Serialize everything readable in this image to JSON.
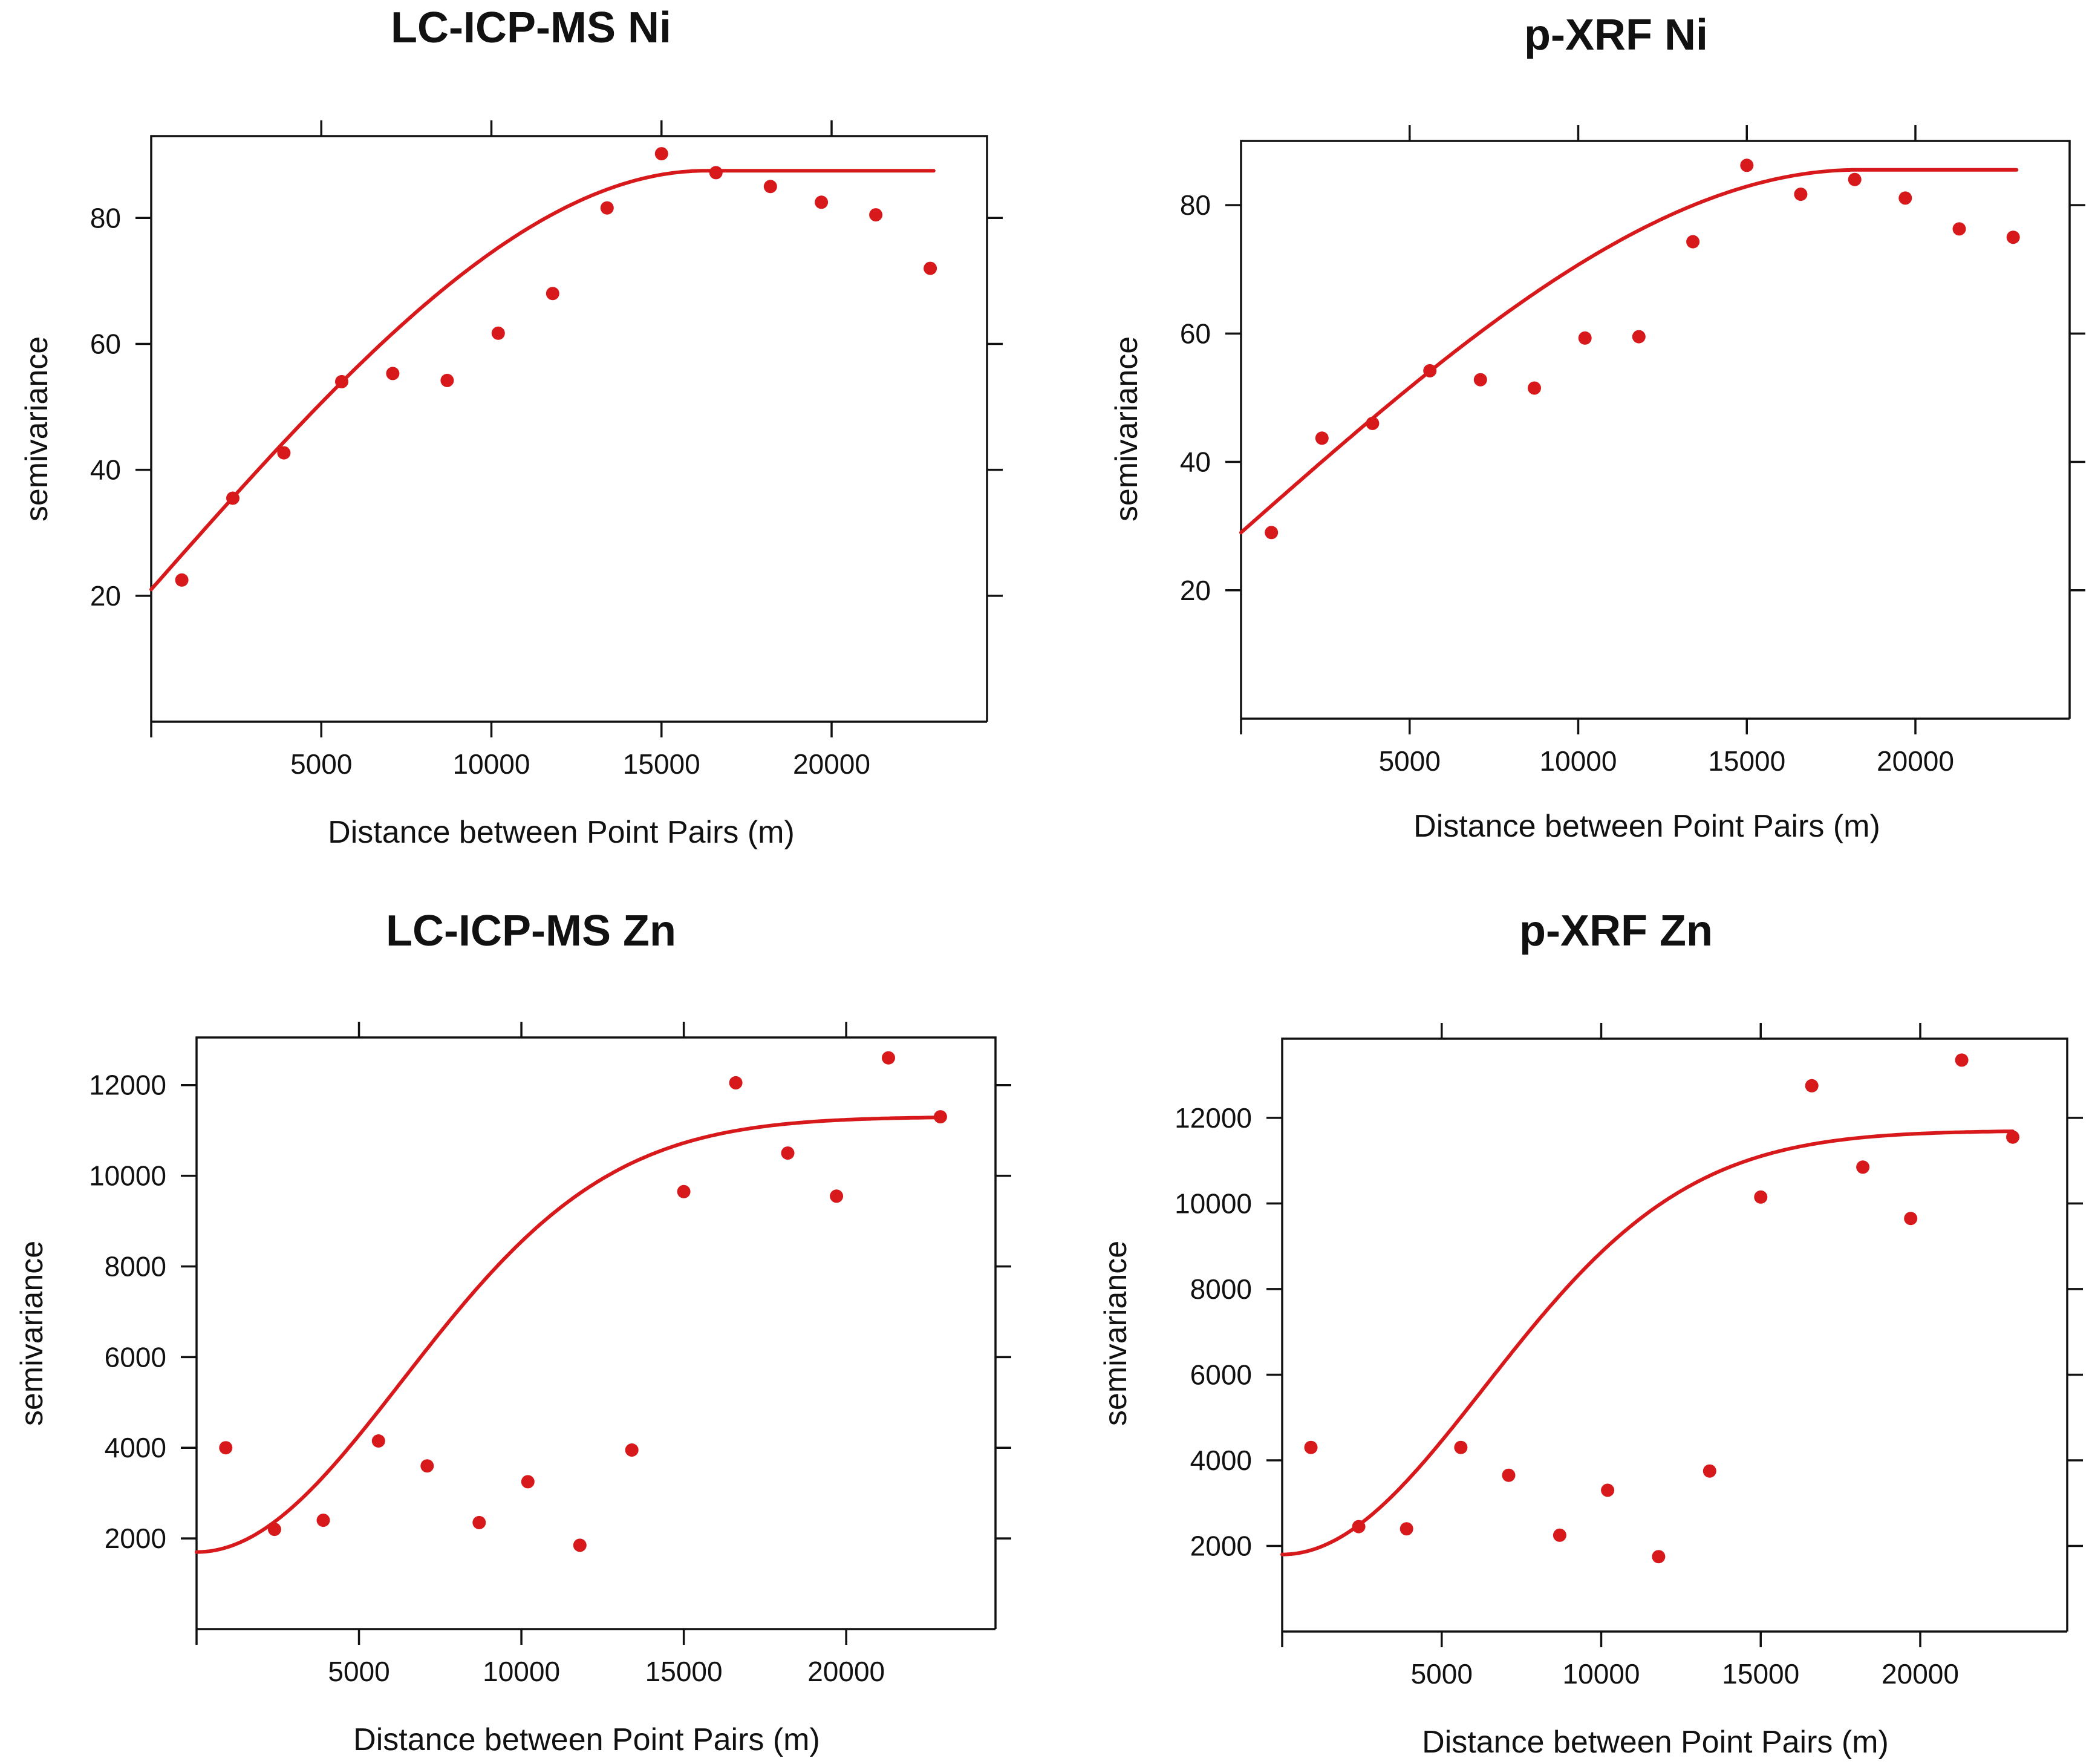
{
  "colors": {
    "accent": "#d7191c",
    "axis": "#111111",
    "background": "#ffffff"
  },
  "chart_data": [
    {
      "type": "scatter",
      "title": "LC-ICP-MS Ni",
      "xlabel": "Distance between Point Pairs (m)",
      "ylabel": "semivariance",
      "xlim": [
        0,
        24000
      ],
      "ylim": [
        0,
        93
      ],
      "xticks": [
        5000,
        10000,
        15000,
        20000
      ],
      "xtick_labels": [
        "5000",
        "10000",
        "15000",
        "20000"
      ],
      "yticks": [
        20,
        40,
        60,
        80
      ],
      "ytick_labels": [
        "20",
        "40",
        "60",
        "80"
      ],
      "points": [
        {
          "x": 900,
          "y": 22.5
        },
        {
          "x": 2400,
          "y": 35.5
        },
        {
          "x": 3900,
          "y": 42.7
        },
        {
          "x": 5600,
          "y": 54
        },
        {
          "x": 7100,
          "y": 55.3
        },
        {
          "x": 8700,
          "y": 54.2
        },
        {
          "x": 10200,
          "y": 61.7
        },
        {
          "x": 11800,
          "y": 68
        },
        {
          "x": 13400,
          "y": 81.6
        },
        {
          "x": 15000,
          "y": 90.2
        },
        {
          "x": 16600,
          "y": 87.2
        },
        {
          "x": 18200,
          "y": 85
        },
        {
          "x": 19700,
          "y": 82.5
        },
        {
          "x": 21300,
          "y": 80.5
        },
        {
          "x": 22900,
          "y": 72
        }
      ],
      "fit": {
        "model": "spherical",
        "nugget": 21,
        "sill": 87.5,
        "range": 16300,
        "x_end": 23000
      }
    },
    {
      "type": "scatter",
      "title": "p-XRF Ni",
      "xlabel": "Distance between Point Pairs (m)",
      "ylabel": "semivariance",
      "xlim": [
        0,
        24000
      ],
      "ylim": [
        0,
        90
      ],
      "xticks": [
        5000,
        10000,
        15000,
        20000
      ],
      "xtick_labels": [
        "5000",
        "10000",
        "15000",
        "20000"
      ],
      "yticks": [
        20,
        40,
        60,
        80
      ],
      "ytick_labels": [
        "20",
        "40",
        "60",
        "80"
      ],
      "points": [
        {
          "x": 900,
          "y": 29
        },
        {
          "x": 2400,
          "y": 43.7
        },
        {
          "x": 3900,
          "y": 46
        },
        {
          "x": 5600,
          "y": 54.2
        },
        {
          "x": 7100,
          "y": 52.8
        },
        {
          "x": 8700,
          "y": 51.5
        },
        {
          "x": 10200,
          "y": 59.3
        },
        {
          "x": 11800,
          "y": 59.5
        },
        {
          "x": 13400,
          "y": 74.3
        },
        {
          "x": 15000,
          "y": 86.2
        },
        {
          "x": 16600,
          "y": 81.7
        },
        {
          "x": 18200,
          "y": 84
        },
        {
          "x": 19700,
          "y": 81.1
        },
        {
          "x": 21300,
          "y": 76.3
        },
        {
          "x": 22900,
          "y": 75
        }
      ],
      "fit": {
        "model": "spherical",
        "nugget": 29,
        "sill": 85.5,
        "range": 18300,
        "x_end": 23000
      }
    },
    {
      "type": "scatter",
      "title": "LC-ICP-MS Zn",
      "xlabel": "Distance between Point Pairs (m)",
      "ylabel": "semivariance",
      "xlim": [
        0,
        24000
      ],
      "ylim": [
        0,
        13050
      ],
      "xticks": [
        5000,
        10000,
        15000,
        20000
      ],
      "xtick_labels": [
        "5000",
        "10000",
        "15000",
        "20000"
      ],
      "yticks": [
        2000,
        4000,
        6000,
        8000,
        10000,
        12000
      ],
      "ytick_labels": [
        "2000",
        "4000",
        "6000",
        "8000",
        "10000",
        "12000"
      ],
      "points": [
        {
          "x": 900,
          "y": 4000
        },
        {
          "x": 2400,
          "y": 2200
        },
        {
          "x": 3900,
          "y": 2400
        },
        {
          "x": 5600,
          "y": 4150
        },
        {
          "x": 7100,
          "y": 3600
        },
        {
          "x": 8700,
          "y": 2350
        },
        {
          "x": 10200,
          "y": 3250
        },
        {
          "x": 11800,
          "y": 1850
        },
        {
          "x": 13400,
          "y": 3950
        },
        {
          "x": 15000,
          "y": 9650
        },
        {
          "x": 16600,
          "y": 12050
        },
        {
          "x": 18200,
          "y": 10500
        },
        {
          "x": 19700,
          "y": 9550
        },
        {
          "x": 21300,
          "y": 12600
        },
        {
          "x": 22900,
          "y": 11300
        }
      ],
      "fit": {
        "model": "gaussian",
        "nugget": 1700,
        "sill": 11300,
        "range": 15500,
        "x_end": 22900
      }
    },
    {
      "type": "scatter",
      "title": "p-XRF Zn",
      "xlabel": "Distance between Point Pairs (m)",
      "ylabel": "semivariance",
      "xlim": [
        0,
        24000
      ],
      "ylim": [
        0,
        13850
      ],
      "xticks": [
        5000,
        10000,
        15000,
        20000
      ],
      "xtick_labels": [
        "5000",
        "10000",
        "15000",
        "20000"
      ],
      "yticks": [
        2000,
        4000,
        6000,
        8000,
        10000,
        12000
      ],
      "ytick_labels": [
        "2000",
        "4000",
        "6000",
        "8000",
        "10000",
        "12000"
      ],
      "points": [
        {
          "x": 900,
          "y": 4300
        },
        {
          "x": 2400,
          "y": 2450
        },
        {
          "x": 3900,
          "y": 2400
        },
        {
          "x": 5600,
          "y": 4300
        },
        {
          "x": 7100,
          "y": 3650
        },
        {
          "x": 8700,
          "y": 2250
        },
        {
          "x": 10200,
          "y": 3300
        },
        {
          "x": 11800,
          "y": 1750
        },
        {
          "x": 13400,
          "y": 3750
        },
        {
          "x": 15000,
          "y": 10150
        },
        {
          "x": 16600,
          "y": 12750
        },
        {
          "x": 18200,
          "y": 10850
        },
        {
          "x": 19700,
          "y": 9650
        },
        {
          "x": 21300,
          "y": 13350
        },
        {
          "x": 22900,
          "y": 11550
        }
      ],
      "fit": {
        "model": "gaussian",
        "nugget": 1800,
        "sill": 11700,
        "range": 15500,
        "x_end": 22900
      }
    }
  ]
}
